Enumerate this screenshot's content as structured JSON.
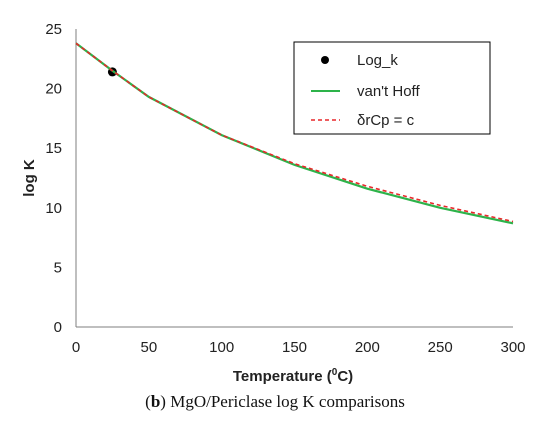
{
  "caption": {
    "letter": "b",
    "text": "MgO/Periclase log K comparisons"
  },
  "chart_data": {
    "type": "line",
    "title": "",
    "xlabel": "Temperature (",
    "xlabel_sup": "0",
    "xlabel_suffix": "C)",
    "ylabel": "log K",
    "xlim": [
      0,
      300
    ],
    "ylim": [
      0,
      25
    ],
    "xticks": [
      0,
      50,
      100,
      150,
      200,
      250,
      300
    ],
    "yticks": [
      0,
      5,
      10,
      15,
      20,
      25
    ],
    "grid": false,
    "legend_position": "top-right",
    "series": [
      {
        "name": "Log_k",
        "style": "marker",
        "color": "#000000",
        "x": [
          25
        ],
        "y": [
          21.4
        ]
      },
      {
        "name": "van't Hoff",
        "style": "solid",
        "color": "#2db34a",
        "x": [
          0,
          25,
          50,
          100,
          150,
          200,
          250,
          300
        ],
        "y": [
          23.8,
          21.5,
          19.3,
          16.1,
          13.6,
          11.6,
          10.0,
          8.7
        ]
      },
      {
        "name": "δrCp = c",
        "style": "dashed",
        "color": "#e8272a",
        "x": [
          0,
          25,
          50,
          100,
          150,
          200,
          250,
          300
        ],
        "y": [
          23.8,
          21.5,
          19.3,
          16.1,
          13.7,
          11.8,
          10.2,
          8.85
        ]
      }
    ]
  }
}
